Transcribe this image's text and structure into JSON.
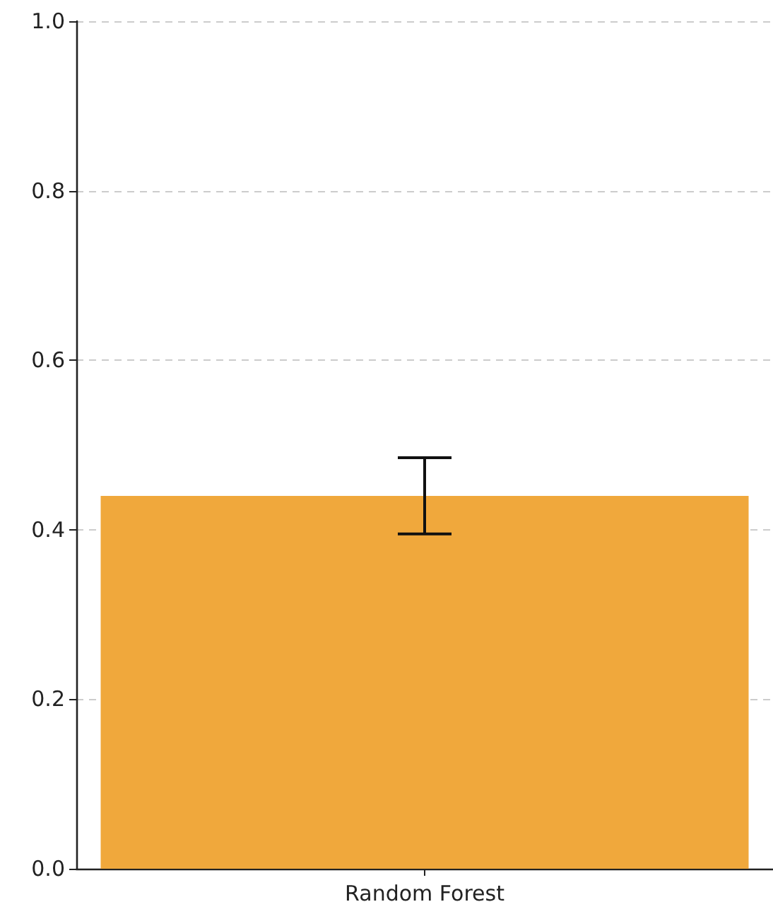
{
  "chart_data": {
    "type": "bar",
    "categories": [
      "Random Forest"
    ],
    "values": [
      0.44
    ],
    "errors": [
      0.045
    ],
    "color": "#f0a83c",
    "ylim": [
      0,
      1
    ],
    "yticks": [
      {
        "value": 0,
        "label": "0.0"
      },
      0.2,
      0.4,
      0.6,
      0.8,
      {
        "value": 1,
        "label": "1.0"
      }
    ],
    "grid": "y"
  }
}
